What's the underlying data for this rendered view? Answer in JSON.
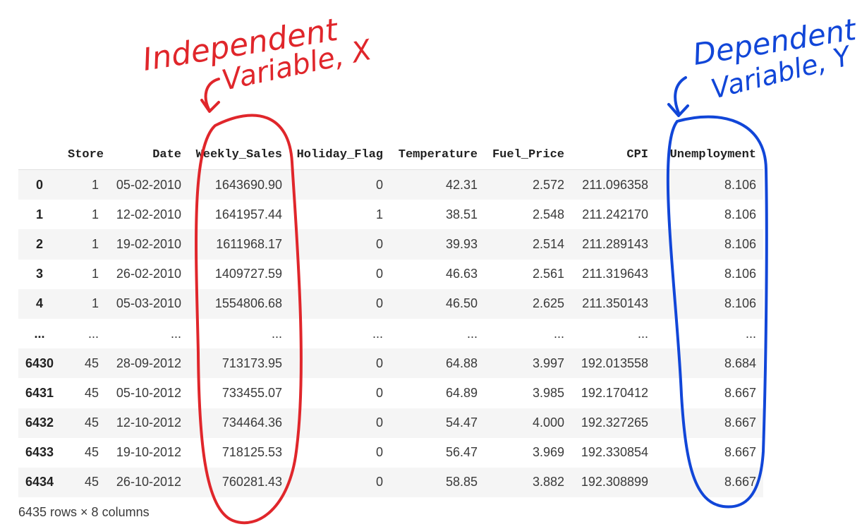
{
  "table": {
    "columns": [
      "",
      "Store",
      "Date",
      "Weekly_Sales",
      "Holiday_Flag",
      "Temperature",
      "Fuel_Price",
      "CPI",
      "Unemployment"
    ],
    "rows": [
      [
        "0",
        "1",
        "05-02-2010",
        "1643690.90",
        "0",
        "42.31",
        "2.572",
        "211.096358",
        "8.106"
      ],
      [
        "1",
        "1",
        "12-02-2010",
        "1641957.44",
        "1",
        "38.51",
        "2.548",
        "211.242170",
        "8.106"
      ],
      [
        "2",
        "1",
        "19-02-2010",
        "1611968.17",
        "0",
        "39.93",
        "2.514",
        "211.289143",
        "8.106"
      ],
      [
        "3",
        "1",
        "26-02-2010",
        "1409727.59",
        "0",
        "46.63",
        "2.561",
        "211.319643",
        "8.106"
      ],
      [
        "4",
        "1",
        "05-03-2010",
        "1554806.68",
        "0",
        "46.50",
        "2.625",
        "211.350143",
        "8.106"
      ],
      [
        "...",
        "...",
        "...",
        "...",
        "...",
        "...",
        "...",
        "...",
        "..."
      ],
      [
        "6430",
        "45",
        "28-09-2012",
        "713173.95",
        "0",
        "64.88",
        "3.997",
        "192.013558",
        "8.684"
      ],
      [
        "6431",
        "45",
        "05-10-2012",
        "733455.07",
        "0",
        "64.89",
        "3.985",
        "192.170412",
        "8.667"
      ],
      [
        "6432",
        "45",
        "12-10-2012",
        "734464.36",
        "0",
        "54.47",
        "4.000",
        "192.327265",
        "8.667"
      ],
      [
        "6433",
        "45",
        "19-10-2012",
        "718125.53",
        "0",
        "56.47",
        "3.969",
        "192.330854",
        "8.667"
      ],
      [
        "6434",
        "45",
        "26-10-2012",
        "760281.43",
        "0",
        "58.85",
        "3.882",
        "192.308899",
        "8.667"
      ]
    ],
    "footer": "6435 rows × 8 columns"
  },
  "annotations": {
    "independent": {
      "line1": "Independent",
      "line2": "Variable, X",
      "color": "#e0262b"
    },
    "dependent": {
      "line1": "Dependent",
      "line2": "Variable, Y",
      "color": "#1146d8"
    }
  }
}
